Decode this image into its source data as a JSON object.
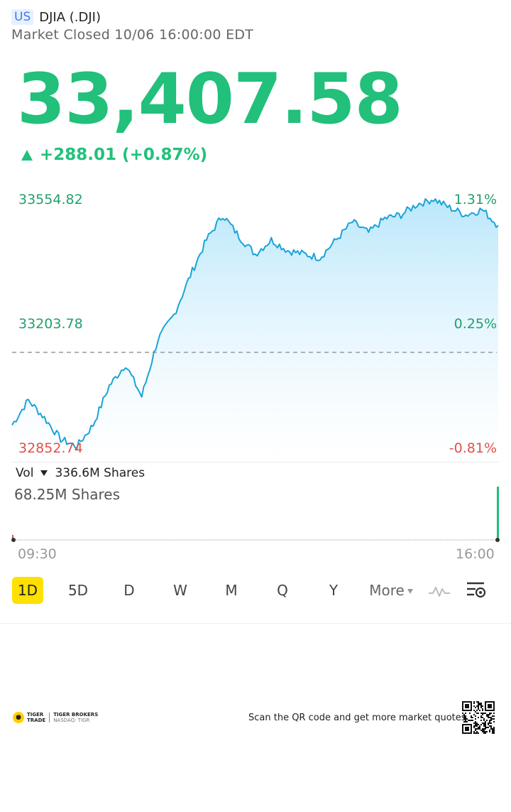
{
  "header": {
    "market_badge": "US",
    "ticker": "DJIA (.DJI)",
    "status": "Market Closed 10/06 16:00:00 EDT"
  },
  "quote": {
    "price": "33,407.58",
    "change": "+288.01 (+0.87%)",
    "direction": "up"
  },
  "chart": {
    "y_high": "33554.82",
    "y_mid": "33203.78",
    "y_low": "32852.74",
    "pct_high": "1.31%",
    "pct_mid": "0.25%",
    "pct_low": "-0.81%",
    "time_start": "09:30",
    "time_end": "16:00",
    "line_color": "#1aa3d9",
    "up_color": "#22c07a",
    "down_color": "#e0504a"
  },
  "volume": {
    "label": "Vol",
    "total": "336.6M Shares",
    "max": "68.25M Shares"
  },
  "periods": [
    "1D",
    "5D",
    "D",
    "W",
    "M",
    "Q",
    "Y"
  ],
  "active_period": "1D",
  "more_label": "More",
  "footer": {
    "brand1_line1": "TIGER",
    "brand1_line2": "TRADE",
    "brand2_line1": "TIGER BROKERS",
    "brand2_line2": "NASDAQ: TIGR",
    "scan_text": "Scan the QR code and get more market quotes"
  },
  "chart_data": {
    "type": "line",
    "y": [
      32920,
      32990,
      32940,
      32880,
      32860,
      32920,
      33030,
      33090,
      33000,
      33160,
      33230,
      33340,
      33440,
      33510,
      33450,
      33400,
      33440,
      33410,
      33400,
      33390,
      33440,
      33490,
      33460,
      33500,
      33510,
      33540,
      33555,
      33530,
      33510,
      33525,
      33480
    ]
  }
}
